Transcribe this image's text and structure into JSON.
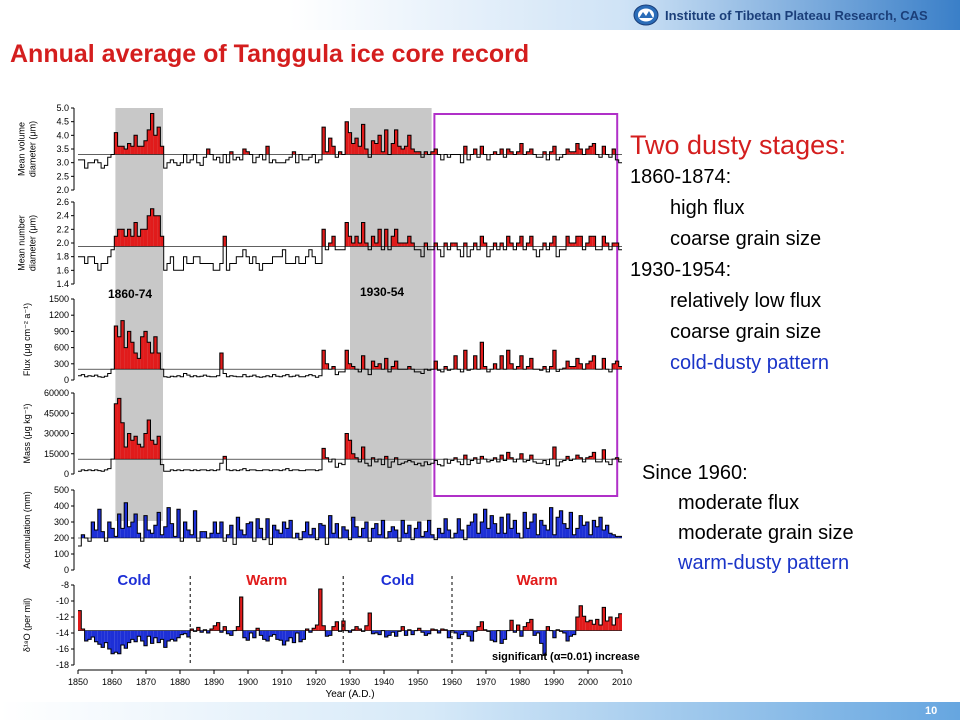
{
  "header": {
    "institute": "Institute of Tibetan Plateau Research, CAS",
    "title": "Annual average of Tanggula ice core record",
    "page_number": "10",
    "logo_icon": "institute-seal-icon"
  },
  "notes": {
    "heading": "Two dusty stages:",
    "stage1_period": "1860-1874:",
    "stage1_lines": [
      "high flux",
      "coarse grain size"
    ],
    "stage2_period": "1930-1954:",
    "stage2_lines": [
      "relatively low flux",
      "coarse grain size"
    ],
    "stage2_pattern": "cold-dusty pattern",
    "since_period": "Since 1960:",
    "since_lines": [
      "moderate flux",
      "moderate grain size"
    ],
    "since_pattern": "warm-dusty pattern"
  },
  "colors": {
    "title": "#d41e1e",
    "positive": "#e11b1b",
    "negative": "#1d2fd6",
    "highlight_box": "#b030c8",
    "shade": "#c8c8c8",
    "pattern_blue": "#1a34c8"
  },
  "chart_data": {
    "type": "bar",
    "xlabel": "Year (A.D.)",
    "xlim": [
      1850,
      2010
    ],
    "x_ticks": [
      1850,
      1860,
      1870,
      1880,
      1890,
      1900,
      1910,
      1920,
      1930,
      1940,
      1950,
      1960,
      1970,
      1980,
      1990,
      2000,
      2010
    ],
    "shaded_periods": [
      {
        "label": "1860-74",
        "start": 1861,
        "end": 1875
      },
      {
        "label": "1930-54",
        "start": 1930,
        "end": 1954
      }
    ],
    "highlight_period": {
      "start": 1956,
      "end": 2008
    },
    "climate_periods": [
      {
        "label": "Cold",
        "start": 1850,
        "end": 1883,
        "color": "#1d2fd6"
      },
      {
        "label": "Warm",
        "start": 1883,
        "end": 1928,
        "color": "#e11b1b"
      },
      {
        "label": "Cold",
        "start": 1928,
        "end": 1960,
        "color": "#1d2fd6"
      },
      {
        "label": "Warm",
        "start": 1960,
        "end": 2010,
        "color": "#e11b1b"
      }
    ],
    "annotation": "significant  (α=0.01) increase",
    "panels": [
      {
        "ylabel": "Mean volume\ndiameter (μm)",
        "ylim": [
          2.0,
          5.0
        ],
        "y_ticks": [
          "2.0",
          "2.5",
          "3.0",
          "3.5",
          "4.0",
          "4.5",
          "5.0"
        ],
        "baseline": 3.3,
        "color_above": "#e11b1b",
        "color_below": "none",
        "values": [
          3.1,
          3.1,
          2.8,
          3.0,
          3.0,
          3.1,
          3.0,
          2.8,
          2.9,
          3.2,
          3.3,
          4.1,
          3.6,
          3.6,
          3.5,
          3.7,
          3.6,
          4.0,
          3.6,
          3.6,
          3.8,
          4.2,
          4.8,
          4.0,
          4.3,
          3.6,
          2.8,
          3.0,
          3.1,
          3.0,
          2.9,
          3.0,
          3.3,
          3.0,
          3.1,
          3.3,
          3.0,
          2.9,
          3.2,
          3.5,
          3.3,
          3.1,
          3.2,
          3.0,
          3.3,
          3.0,
          3.4,
          3.1,
          3.2,
          3.1,
          3.5,
          3.4,
          3.3,
          3.0,
          3.2,
          3.3,
          3.1,
          3.6,
          3.0,
          3.1,
          3.0,
          3.0,
          3.0,
          3.1,
          3.2,
          3.4,
          3.0,
          3.3,
          3.1,
          3.1,
          3.2,
          3.3,
          3.0,
          3.1,
          4.3,
          3.4,
          3.9,
          3.6,
          3.2,
          3.4,
          3.3,
          4.5,
          4.1,
          3.7,
          3.9,
          3.6,
          4.4,
          3.5,
          3.2,
          3.8,
          3.7,
          4.0,
          3.4,
          4.2,
          3.3,
          3.7,
          4.2,
          3.6,
          3.5,
          3.6,
          4.0,
          3.5,
          3.4,
          3.4,
          3.2,
          3.4,
          3.3,
          3.4,
          3.5,
          3.3,
          3.1,
          3.3,
          3.2,
          3.3,
          3.3,
          3.3,
          3.0,
          3.6,
          3.1,
          3.3,
          3.5,
          3.2,
          3.6,
          3.3,
          3.1,
          3.3,
          3.4,
          3.3,
          3.5,
          3.2,
          3.5,
          3.4,
          3.3,
          3.4,
          3.7,
          3.3,
          3.4,
          3.5,
          3.3,
          3.2,
          3.2,
          3.4,
          3.1,
          3.4,
          3.6,
          3.1,
          3.2,
          3.3,
          3.5,
          3.4,
          3.4,
          3.7,
          3.5,
          3.3,
          3.5,
          3.6,
          3.7,
          3.3,
          3.2,
          3.6,
          3.3,
          3.2,
          3.5,
          3.1,
          3.0
        ]
      },
      {
        "ylabel": "Mean number\ndiameter (μm)",
        "ylim": [
          1.4,
          2.6
        ],
        "y_ticks": [
          "1.4",
          "1.6",
          "1.8",
          "2.0",
          "2.2",
          "2.4",
          "2.6"
        ],
        "baseline": 1.95,
        "color_above": "#e11b1b",
        "color_below": "none",
        "values": [
          1.8,
          1.8,
          1.7,
          1.8,
          1.8,
          1.7,
          1.6,
          1.7,
          1.7,
          1.8,
          1.9,
          2.1,
          2.2,
          2.2,
          2.1,
          2.2,
          2.1,
          2.3,
          2.1,
          2.2,
          2.2,
          2.4,
          2.5,
          2.4,
          2.4,
          2.1,
          1.6,
          1.7,
          1.8,
          1.6,
          1.6,
          1.6,
          1.8,
          1.7,
          1.7,
          1.8,
          1.8,
          1.7,
          1.7,
          1.7,
          1.7,
          1.6,
          1.6,
          1.7,
          2.1,
          1.6,
          1.7,
          1.7,
          1.8,
          1.8,
          1.9,
          1.8,
          1.7,
          1.8,
          1.7,
          1.6,
          1.7,
          1.7,
          1.7,
          1.8,
          1.8,
          1.8,
          1.9,
          1.7,
          1.7,
          1.7,
          1.8,
          1.7,
          1.7,
          1.8,
          1.9,
          1.8,
          1.7,
          1.7,
          2.2,
          1.9,
          2.0,
          2.1,
          1.9,
          1.9,
          1.9,
          2.3,
          2.1,
          2.0,
          2.1,
          2.0,
          2.3,
          2.0,
          1.9,
          2.1,
          2.0,
          2.2,
          1.9,
          2.2,
          1.9,
          2.1,
          2.2,
          2.0,
          2.0,
          2.0,
          2.1,
          2.0,
          1.9,
          1.9,
          1.8,
          2.0,
          1.9,
          1.9,
          2.0,
          1.9,
          1.8,
          2.0,
          1.9,
          2.0,
          2.0,
          1.9,
          1.8,
          2.0,
          1.8,
          1.9,
          2.0,
          1.9,
          2.1,
          2.0,
          1.8,
          1.9,
          2.0,
          1.9,
          2.0,
          1.9,
          2.1,
          2.0,
          1.9,
          2.0,
          2.1,
          1.9,
          2.0,
          2.1,
          1.9,
          1.8,
          1.9,
          2.0,
          1.9,
          2.0,
          2.1,
          1.8,
          1.9,
          1.9,
          2.1,
          2.0,
          2.0,
          2.1,
          2.1,
          1.9,
          2.0,
          2.1,
          2.1,
          1.9,
          1.9,
          2.1,
          2.0,
          1.9,
          2.0,
          2.0,
          1.9
        ]
      },
      {
        "ylabel": "Flux (μg cm⁻² a⁻¹)",
        "ylim": [
          0,
          1500
        ],
        "y_ticks": [
          "0",
          "300",
          "600",
          "900",
          "1200",
          "1500"
        ],
        "baseline": 200,
        "color_above": "#e11b1b",
        "color_below": "none",
        "values": [
          80,
          100,
          60,
          80,
          70,
          90,
          60,
          50,
          70,
          120,
          200,
          1000,
          800,
          1100,
          600,
          900,
          700,
          500,
          400,
          800,
          900,
          700,
          500,
          800,
          500,
          200,
          60,
          50,
          70,
          60,
          80,
          60,
          120,
          90,
          60,
          80,
          60,
          70,
          90,
          70,
          60,
          60,
          80,
          500,
          120,
          60,
          80,
          70,
          60,
          60,
          100,
          60,
          70,
          90,
          60,
          50,
          60,
          80,
          60,
          100,
          70,
          60,
          80,
          100,
          60,
          70,
          90,
          60,
          60,
          80,
          100,
          80,
          50,
          80,
          550,
          300,
          200,
          250,
          100,
          150,
          150,
          550,
          300,
          250,
          200,
          150,
          450,
          200,
          100,
          350,
          250,
          300,
          200,
          400,
          150,
          250,
          350,
          200,
          200,
          200,
          250,
          200,
          150,
          150,
          120,
          200,
          180,
          200,
          350,
          180,
          150,
          250,
          180,
          200,
          450,
          200,
          150,
          550,
          180,
          200,
          450,
          200,
          700,
          250,
          150,
          200,
          300,
          200,
          450,
          200,
          550,
          300,
          200,
          250,
          450,
          200,
          250,
          400,
          200,
          200,
          180,
          250,
          150,
          250,
          550,
          160,
          200,
          220,
          350,
          250,
          250,
          400,
          300,
          200,
          300,
          350,
          450,
          200,
          200,
          400,
          200,
          150,
          300,
          350,
          250
        ]
      },
      {
        "ylabel": "Mass (μg kg⁻¹)",
        "ylim": [
          0,
          60000
        ],
        "y_ticks": [
          "0",
          "15000",
          "30000",
          "45000",
          "60000"
        ],
        "baseline": 11000,
        "color_above": "#e11b1b",
        "color_below": "none",
        "values": [
          2000,
          3000,
          2500,
          3000,
          2500,
          3000,
          2500,
          2000,
          3000,
          4000,
          11000,
          52000,
          56000,
          38000,
          20000,
          30000,
          25000,
          28000,
          22000,
          20000,
          30000,
          40000,
          25000,
          22000,
          28000,
          7000,
          2000,
          2000,
          3000,
          2500,
          3000,
          2500,
          3000,
          3000,
          2500,
          3000,
          2500,
          3000,
          3000,
          2500,
          3000,
          2500,
          3000,
          8000,
          13000,
          3000,
          2500,
          3000,
          2500,
          3000,
          4000,
          2500,
          3000,
          3000,
          2500,
          2500,
          3000,
          3000,
          2500,
          3000,
          3000,
          2500,
          3000,
          4000,
          2500,
          3000,
          3000,
          2500,
          2500,
          3000,
          3000,
          3000,
          2500,
          3000,
          19000,
          12000,
          9000,
          11000,
          5000,
          8000,
          7000,
          30000,
          25000,
          15000,
          12000,
          9000,
          20000,
          8000,
          6000,
          12000,
          9000,
          11000,
          7000,
          13000,
          5000,
          9000,
          12000,
          7000,
          8000,
          9000,
          10000,
          9000,
          7000,
          8000,
          6000,
          9000,
          7000,
          8000,
          10000,
          7000,
          6000,
          11000,
          8000,
          10000,
          12000,
          9000,
          7000,
          14000,
          7000,
          10000,
          12000,
          8000,
          13000,
          11000,
          9000,
          10000,
          12000,
          9000,
          14000,
          10000,
          16000,
          12000,
          9000,
          11000,
          15000,
          9000,
          10000,
          14000,
          9000,
          8000,
          8000,
          10000,
          7000,
          11000,
          20000,
          6000,
          9000,
          10000,
          13000,
          10000,
          11000,
          14000,
          12000,
          9000,
          12000,
          13000,
          16000,
          9000,
          9000,
          18000,
          9000,
          7000,
          11000,
          12000,
          9000
        ]
      },
      {
        "ylabel": "Accumulation (mm)",
        "ylim": [
          0,
          500
        ],
        "y_ticks": [
          "0",
          "100",
          "200",
          "300",
          "400",
          "500"
        ],
        "baseline": 200,
        "color_above": "#1d2fd6",
        "color_below": "none",
        "values": [
          150,
          220,
          200,
          180,
          300,
          250,
          380,
          240,
          180,
          300,
          260,
          210,
          350,
          260,
          420,
          270,
          300,
          350,
          230,
          180,
          340,
          250,
          230,
          280,
          360,
          220,
          270,
          390,
          290,
          210,
          380,
          180,
          300,
          250,
          220,
          370,
          180,
          240,
          240,
          200,
          230,
          300,
          230,
          300,
          180,
          220,
          280,
          160,
          330,
          250,
          220,
          290,
          300,
          180,
          320,
          260,
          190,
          320,
          160,
          280,
          250,
          230,
          300,
          260,
          310,
          200,
          230,
          190,
          240,
          300,
          220,
          260,
          190,
          290,
          280,
          160,
          340,
          230,
          290,
          200,
          270,
          250,
          190,
          330,
          270,
          210,
          260,
          300,
          180,
          260,
          290,
          220,
          310,
          200,
          240,
          270,
          250,
          180,
          310,
          230,
          280,
          190,
          260,
          300,
          210,
          240,
          310,
          220,
          190,
          260,
          230,
          320,
          250,
          200,
          230,
          320,
          250,
          190,
          280,
          300,
          350,
          230,
          300,
          380,
          260,
          340,
          290,
          230,
          330,
          230,
          350,
          260,
          310,
          230,
          200,
          360,
          260,
          300,
          350,
          220,
          310,
          280,
          250,
          390,
          220,
          330,
          370,
          290,
          260,
          360,
          220,
          260,
          340,
          280,
          300,
          220,
          310,
          270,
          330,
          250,
          280,
          230,
          220,
          210,
          210
        ]
      },
      {
        "ylabel": "δ¹⁸O (per mil)",
        "ylim": [
          -18,
          -8
        ],
        "y_ticks": [
          "-18",
          "-16",
          "-14",
          "-12",
          "-10",
          "-8"
        ],
        "baseline": -13.7,
        "color_above": "#e11b1b",
        "color_below": "#1d2fd6",
        "values": [
          -11.2,
          -13.5,
          -15.0,
          -14.8,
          -14.5,
          -15.1,
          -15.4,
          -15.8,
          -15.2,
          -16.0,
          -16.6,
          -16.4,
          -16.6,
          -15.5,
          -15.9,
          -15.2,
          -14.8,
          -15.1,
          -14.4,
          -15.0,
          -15.6,
          -14.4,
          -15.3,
          -14.6,
          -15.2,
          -14.8,
          -15.8,
          -15.0,
          -14.8,
          -15.0,
          -14.6,
          -14.2,
          -14.1,
          -14.5,
          -13.5,
          -13.8,
          -13.3,
          -13.9,
          -13.6,
          -14.0,
          -13.5,
          -13.1,
          -12.7,
          -13.9,
          -13.2,
          -14.1,
          -14.3,
          -13.7,
          -13.2,
          -9.5,
          -14.6,
          -14.9,
          -14.0,
          -14.6,
          -13.4,
          -14.3,
          -14.8,
          -15.0,
          -14.4,
          -14.2,
          -14.8,
          -14.9,
          -15.5,
          -15.0,
          -14.6,
          -15.2,
          -14.0,
          -15.1,
          -14.8,
          -13.5,
          -13.9,
          -13.4,
          -13.0,
          -8.5,
          -13.1,
          -14.4,
          -14.3,
          -13.2,
          -12.6,
          -13.8,
          -12.5,
          -13.7,
          -13.9,
          -13.6,
          -13.2,
          -13.5,
          -13.8,
          -13.1,
          -11.5,
          -14.1,
          -14.0,
          -14.2,
          -13.7,
          -14.5,
          -14.3,
          -13.9,
          -14.4,
          -13.8,
          -13.2,
          -14.3,
          -13.6,
          -14.2,
          -13.7,
          -13.4,
          -13.9,
          -14.3,
          -14.1,
          -13.5,
          -13.6,
          -14.0,
          -13.5,
          -13.6,
          -14.6,
          -13.7,
          -14.0,
          -14.7,
          -14.2,
          -13.9,
          -14.4,
          -15.0,
          -13.8,
          -13.2,
          -12.6,
          -13.6,
          -13.8,
          -14.9,
          -15.1,
          -13.7,
          -15.3,
          -14.8,
          -13.7,
          -12.4,
          -13.9,
          -13.0,
          -14.4,
          -13.2,
          -12.7,
          -12.3,
          -14.3,
          -14.0,
          -15.3,
          -16.8,
          -13.2,
          -13.7,
          -14.6,
          -13.6,
          -13.8,
          -14.0,
          -15.0,
          -14.4,
          -14.2,
          -12.0,
          -10.6,
          -11.9,
          -12.6,
          -12.4,
          -12.9,
          -12.3,
          -13.0,
          -10.8,
          -12.5,
          -12.0,
          -13.0,
          -12.1,
          -11.6
        ]
      }
    ]
  }
}
